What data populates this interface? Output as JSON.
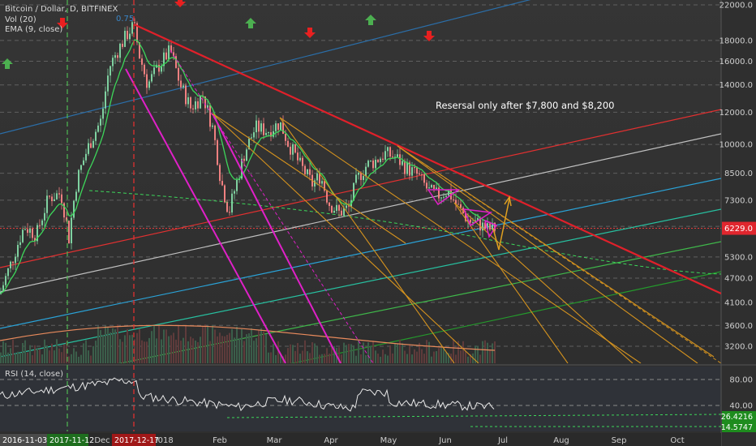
{
  "chart_data": {
    "type": "candlestick",
    "legend": {
      "symbol": "Bitcoin / Dollar, D, BITFINEX",
      "volume": "Vol (20)",
      "ema": "EMA (9, close)",
      "rsi": "RSI (14, close)"
    },
    "annotation": "Resersal only after $7,800 and $8,200",
    "price_axis": {
      "scale": "log",
      "ticks": [
        22000,
        18000,
        16000,
        14000,
        12000,
        10000,
        8500,
        7300,
        6300,
        5300,
        4700,
        4100,
        3600,
        3200
      ],
      "tick_labels": [
        "22000.0",
        "18000.0",
        "16000.0",
        "14000.0",
        "12000.0",
        "10000.0",
        "8500.0",
        "7300.0",
        "",
        "5300.0",
        "4700.0",
        "4100.0",
        "3600.0",
        "3200.0"
      ],
      "current_price": 6229.0,
      "current_label": "6229.0"
    },
    "rsi_axis": {
      "ticks": [
        80,
        40
      ],
      "tick_labels": [
        "80.00",
        "40.00"
      ],
      "markers": [
        {
          "label": "26.4216",
          "value": 26.42,
          "color": "#1e8c1e"
        },
        {
          "label": "14.5747",
          "value": 14.57,
          "color": "#1e8c1e"
        }
      ]
    },
    "time_axis": {
      "labels": [
        "Dec",
        "2018",
        "Feb",
        "Mar",
        "Apr",
        "May",
        "Jun",
        "Jul",
        "Aug",
        "Sep",
        "Oct"
      ],
      "highlights": [
        {
          "label": "2016-11-03",
          "color": "#4a4a4a"
        },
        {
          "label": "2017-11-12",
          "color": "#1e6e1e"
        },
        {
          "label": "2017-12-17",
          "color": "#a01818"
        }
      ]
    },
    "markers": {
      "up_arrow_color": "#4caf50",
      "down_arrow_color": "#e82020"
    },
    "fib_label": "0.75",
    "colors": {
      "bull": "#7fd1a0",
      "bear": "#f08080",
      "ema": "#3dd65a",
      "resistance": "#e0202a",
      "fan": "#d4921e",
      "magenta": "#e020c8"
    }
  }
}
